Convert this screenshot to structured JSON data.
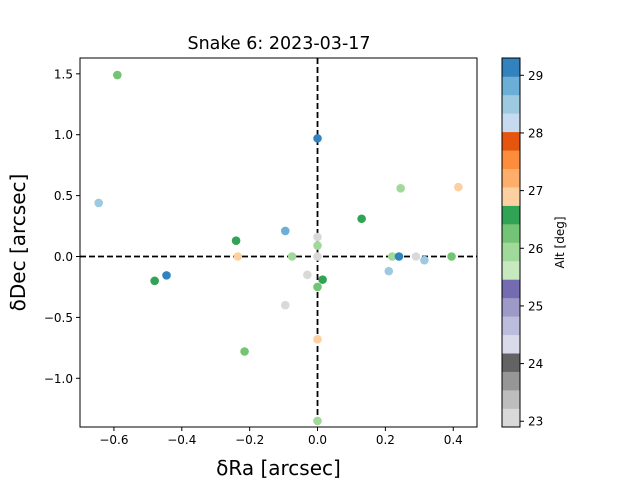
{
  "chart_data": {
    "type": "scatter",
    "title": "Snake 6: 2023-03-17",
    "xlabel": "δRa [arcsec]",
    "ylabel": "δDec [arcsec]",
    "xlim": [
      -0.7,
      0.47
    ],
    "ylim": [
      -1.4,
      1.63
    ],
    "x_ticks": [
      -0.6,
      -0.4,
      -0.2,
      0.0,
      0.2,
      0.4
    ],
    "x_tick_labels": [
      "−0.6",
      "−0.4",
      "−0.2",
      "0.0",
      "0.2",
      "0.4"
    ],
    "y_ticks": [
      -1.0,
      -0.5,
      0.0,
      0.5,
      1.0,
      1.5
    ],
    "y_tick_labels": [
      "−1.0",
      "−0.5",
      "0.0",
      "0.5",
      "1.0",
      "1.5"
    ],
    "crosshair": {
      "x": 0,
      "y": 0,
      "style": "dashed",
      "color": "#000000"
    },
    "grid": false,
    "colorbar": {
      "label": "Alt [deg]",
      "range": [
        22.9,
        29.3
      ],
      "ticks": [
        23,
        24,
        25,
        26,
        27,
        28,
        29
      ],
      "tick_labels": [
        "23",
        "24",
        "25",
        "26",
        "27",
        "28",
        "29"
      ],
      "palette": [
        "#d9d9d9",
        "#bdbdbd",
        "#969696",
        "#636363",
        "#dadaeb",
        "#bcbddc",
        "#9e9ac8",
        "#756bb1",
        "#c7e9c0",
        "#a1d99b",
        "#74c476",
        "#31a354",
        "#fdd0a2",
        "#fdae6b",
        "#fd8d3c",
        "#e6550d",
        "#c6dbef",
        "#9ecae1",
        "#6baed6",
        "#3182bd"
      ]
    },
    "points": [
      {
        "x": -0.59,
        "y": 1.49,
        "alt": 26.2
      },
      {
        "x": -0.645,
        "y": 0.44,
        "alt": 28.4
      },
      {
        "x": -0.48,
        "y": -0.2,
        "alt": 26.6
      },
      {
        "x": -0.445,
        "y": -0.155,
        "alt": 29.1
      },
      {
        "x": -0.24,
        "y": 0.13,
        "alt": 26.6
      },
      {
        "x": -0.235,
        "y": 0.0,
        "alt": 26.9
      },
      {
        "x": -0.215,
        "y": -0.78,
        "alt": 26.2
      },
      {
        "x": -0.095,
        "y": 0.21,
        "alt": 28.7
      },
      {
        "x": -0.095,
        "y": -0.4,
        "alt": 23.2
      },
      {
        "x": -0.075,
        "y": 0.0,
        "alt": 26.0
      },
      {
        "x": -0.03,
        "y": -0.15,
        "alt": 23.2
      },
      {
        "x": 0.0,
        "y": 0.97,
        "alt": 29.1
      },
      {
        "x": 0.0,
        "y": 0.16,
        "alt": 23.0
      },
      {
        "x": 0.0,
        "y": 0.09,
        "alt": 26.0
      },
      {
        "x": 0.0,
        "y": 0.0,
        "alt": 23.2
      },
      {
        "x": 0.0,
        "y": -0.25,
        "alt": 26.2
      },
      {
        "x": 0.0,
        "y": -0.68,
        "alt": 26.9
      },
      {
        "x": 0.0,
        "y": -1.35,
        "alt": 26.0
      },
      {
        "x": 0.015,
        "y": -0.19,
        "alt": 26.6
      },
      {
        "x": 0.13,
        "y": 0.31,
        "alt": 26.6
      },
      {
        "x": 0.21,
        "y": -0.12,
        "alt": 28.4
      },
      {
        "x": 0.22,
        "y": 0.0,
        "alt": 26.0
      },
      {
        "x": 0.245,
        "y": 0.56,
        "alt": 26.0
      },
      {
        "x": 0.24,
        "y": 0.0,
        "alt": 29.1
      },
      {
        "x": 0.29,
        "y": 0.0,
        "alt": 23.0
      },
      {
        "x": 0.315,
        "y": -0.03,
        "alt": 28.4
      },
      {
        "x": 0.395,
        "y": 0.0,
        "alt": 26.2
      },
      {
        "x": 0.415,
        "y": 0.57,
        "alt": 26.9
      }
    ]
  }
}
